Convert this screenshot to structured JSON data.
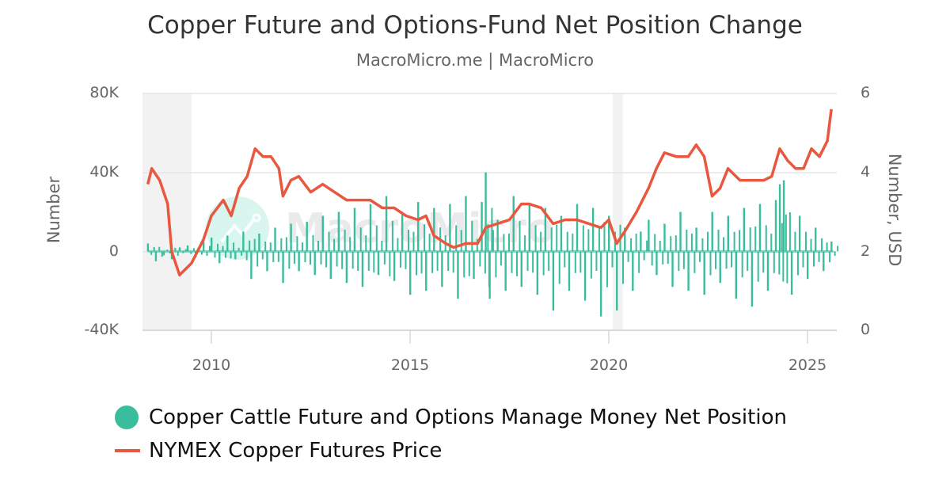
{
  "title": "Copper Future and Options-Fund Net Position Change",
  "subtitle": "MacroMicro.me | MacroMicro",
  "watermark": "MacroMicro",
  "colors": {
    "net_position": "#3ABD9C",
    "price": "#E8573E",
    "grid": "#E6E6E6",
    "recession_band": "#F2F2F2"
  },
  "axes": {
    "left": {
      "title": "Number",
      "ticks": [
        "80K",
        "40K",
        "0",
        "-40K"
      ]
    },
    "right": {
      "title": "Number, USD",
      "ticks": [
        "6",
        "4",
        "2",
        "0"
      ]
    },
    "x": {
      "ticks": [
        "2010",
        "2015",
        "2020",
        "2025"
      ]
    }
  },
  "legend": [
    {
      "label": "Copper Cattle Future and Options Manage Money Net Position",
      "marker": "circle",
      "color": "#3ABD9C"
    },
    {
      "label": "NYMEX Copper Futures Price",
      "marker": "line",
      "color": "#E8573E"
    }
  ],
  "chart_data": {
    "type": "bar+line",
    "title": "Copper Future and Options-Fund Net Position Change",
    "subtitle": "MacroMicro.me | MacroMicro",
    "xlabel": "",
    "ylabel_left": "Number",
    "ylabel_right": "Number, USD",
    "ylim_left": [
      -40000,
      80000
    ],
    "ylim_right": [
      0,
      6
    ],
    "xlim": [
      2008.25,
      2025.8
    ],
    "x_ticks": [
      2010,
      2015,
      2020,
      2025
    ],
    "grid": true,
    "legend_position": "bottom",
    "shaded_periods": [
      [
        2008.0,
        2009.5
      ],
      [
        2020.1,
        2020.35
      ]
    ],
    "series": [
      {
        "name": "Copper Cattle Future and Options Manage Money Net Position",
        "type": "bar",
        "axis": "left",
        "color": "#3ABD9C",
        "x": [
          2008.4,
          2008.6,
          2008.8,
          2009.0,
          2009.2,
          2009.4,
          2009.6,
          2009.8,
          2010.0,
          2010.2,
          2010.4,
          2010.6,
          2010.8,
          2011.0,
          2011.2,
          2011.4,
          2011.6,
          2011.8,
          2012.0,
          2012.2,
          2012.4,
          2012.6,
          2012.8,
          2013.0,
          2013.2,
          2013.4,
          2013.6,
          2013.8,
          2014.0,
          2014.2,
          2014.4,
          2014.6,
          2014.8,
          2015.0,
          2015.2,
          2015.4,
          2015.6,
          2015.8,
          2016.0,
          2016.2,
          2016.4,
          2016.6,
          2016.8,
          2016.9,
          2017.0,
          2017.2,
          2017.4,
          2017.6,
          2017.8,
          2018.0,
          2018.2,
          2018.4,
          2018.6,
          2018.8,
          2019.0,
          2019.2,
          2019.4,
          2019.6,
          2019.8,
          2020.0,
          2020.2,
          2020.4,
          2020.6,
          2020.8,
          2021.0,
          2021.2,
          2021.4,
          2021.6,
          2021.8,
          2022.0,
          2022.2,
          2022.4,
          2022.6,
          2022.8,
          2023.0,
          2023.2,
          2023.4,
          2023.6,
          2023.8,
          2024.0,
          2024.2,
          2024.3,
          2024.4,
          2024.6,
          2024.8,
          2025.0,
          2025.2,
          2025.4,
          2025.6
        ],
        "values": [
          4000,
          -5000,
          -2000,
          -4000,
          2000,
          3000,
          -3000,
          5000,
          7000,
          -6000,
          8000,
          -4000,
          10000,
          -14000,
          9000,
          -10000,
          12000,
          -16000,
          14000,
          -10000,
          15000,
          -12000,
          18000,
          -14000,
          20000,
          -16000,
          22000,
          -18000,
          24000,
          -12000,
          28000,
          -15000,
          20000,
          -22000,
          25000,
          -20000,
          22000,
          -18000,
          24000,
          -24000,
          28000,
          -14000,
          25000,
          40000,
          -24000,
          16000,
          -20000,
          28000,
          -18000,
          24000,
          -22000,
          22000,
          -30000,
          18000,
          -20000,
          24000,
          -25000,
          22000,
          -33000,
          18000,
          -30000,
          12000,
          -20000,
          10000,
          16000,
          -12000,
          14000,
          -18000,
          20000,
          -20000,
          12000,
          -22000,
          20000,
          -16000,
          18000,
          -24000,
          22000,
          -28000,
          24000,
          -20000,
          26000,
          34000,
          36000,
          -22000,
          18000,
          -14000,
          12000,
          -10000,
          5000
        ],
        "notes": "weekly/biweekly bars oscillating mostly between -33K and +40K; values approximated from pixels"
      },
      {
        "name": "NYMEX Copper Futures Price",
        "type": "line",
        "axis": "right",
        "color": "#E8573E",
        "x": [
          2008.4,
          2008.5,
          2008.7,
          2008.9,
          2009.0,
          2009.2,
          2009.5,
          2009.8,
          2010.0,
          2010.3,
          2010.5,
          2010.7,
          2010.9,
          2011.1,
          2011.3,
          2011.5,
          2011.7,
          2011.8,
          2012.0,
          2012.2,
          2012.5,
          2012.8,
          2013.1,
          2013.4,
          2013.7,
          2014.0,
          2014.3,
          2014.6,
          2014.9,
          2015.2,
          2015.4,
          2015.6,
          2015.9,
          2016.1,
          2016.4,
          2016.7,
          2016.9,
          2017.2,
          2017.5,
          2017.8,
          2018.0,
          2018.3,
          2018.6,
          2018.9,
          2019.2,
          2019.5,
          2019.8,
          2020.0,
          2020.2,
          2020.4,
          2020.7,
          2021.0,
          2021.2,
          2021.4,
          2021.7,
          2022.0,
          2022.2,
          2022.4,
          2022.6,
          2022.8,
          2023.0,
          2023.3,
          2023.6,
          2023.9,
          2024.1,
          2024.3,
          2024.5,
          2024.7,
          2024.9,
          2025.1,
          2025.3,
          2025.5,
          2025.6
        ],
        "values": [
          3.7,
          4.1,
          3.8,
          3.2,
          2.0,
          1.4,
          1.7,
          2.3,
          2.9,
          3.3,
          2.9,
          3.6,
          3.9,
          4.6,
          4.4,
          4.4,
          4.1,
          3.4,
          3.8,
          3.9,
          3.5,
          3.7,
          3.5,
          3.3,
          3.3,
          3.3,
          3.1,
          3.1,
          2.9,
          2.8,
          2.9,
          2.4,
          2.2,
          2.1,
          2.2,
          2.2,
          2.6,
          2.7,
          2.8,
          3.2,
          3.2,
          3.1,
          2.7,
          2.8,
          2.8,
          2.7,
          2.6,
          2.8,
          2.2,
          2.5,
          3.0,
          3.6,
          4.1,
          4.5,
          4.4,
          4.4,
          4.7,
          4.4,
          3.4,
          3.6,
          4.1,
          3.8,
          3.8,
          3.8,
          3.9,
          4.6,
          4.3,
          4.1,
          4.1,
          4.6,
          4.4,
          4.8,
          5.6
        ],
        "notes": "values approximated from pixels"
      }
    ]
  }
}
